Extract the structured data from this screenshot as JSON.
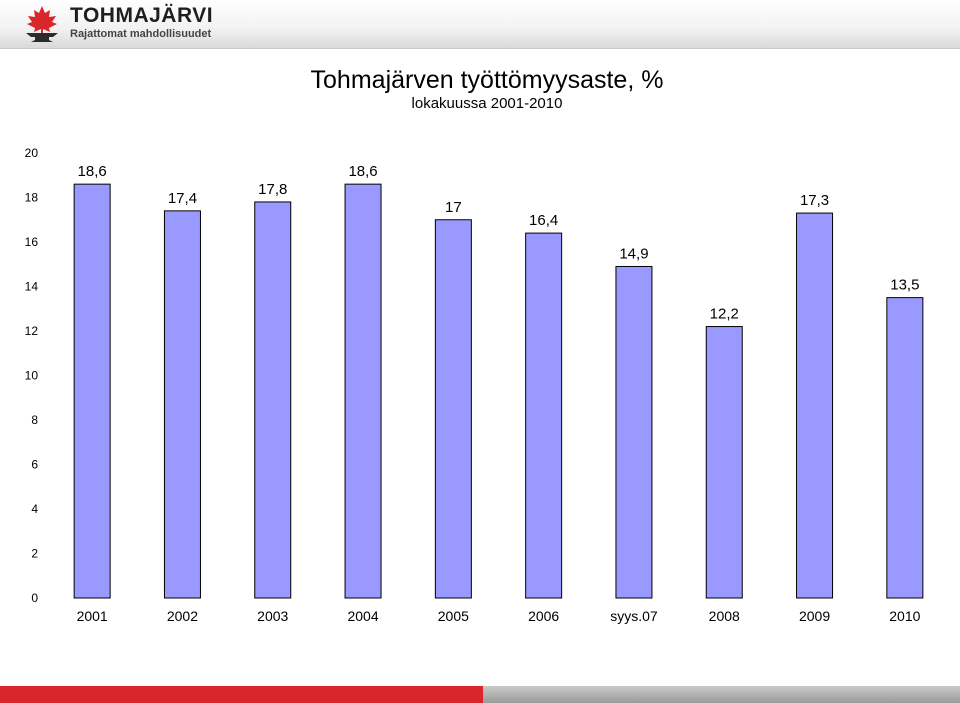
{
  "header": {
    "logo_name": "TOHMAJÄRVI",
    "logo_slogan": "Rajattomat mahdollisuudet",
    "logo_icon": "anvil-maple-leaf-emblem",
    "brand_red": "#d9262c"
  },
  "chart_data": {
    "type": "bar",
    "title": "Tohmajärven työttömyysaste, %",
    "subtitle": "lokakuussa 2001-2010",
    "categories": [
      "2001",
      "2002",
      "2003",
      "2004",
      "2005",
      "2006",
      "syys.07",
      "2008",
      "2009",
      "2010"
    ],
    "values": [
      18.6,
      17.4,
      17.8,
      18.6,
      17,
      16.4,
      14.9,
      12.2,
      17.3,
      13.5
    ],
    "data_labels": [
      "18,6",
      "17,4",
      "17,8",
      "18,6",
      "17",
      "16,4",
      "14,9",
      "12,2",
      "17,3",
      "13,5"
    ],
    "ylim": [
      0,
      20
    ],
    "yticks": [
      "0",
      "2",
      "4",
      "6",
      "8",
      "10",
      "12",
      "14",
      "16",
      "18",
      "20"
    ],
    "xlabel": "",
    "ylabel": "",
    "grid": false,
    "legend": "none",
    "bar_color": "#9999ff"
  }
}
